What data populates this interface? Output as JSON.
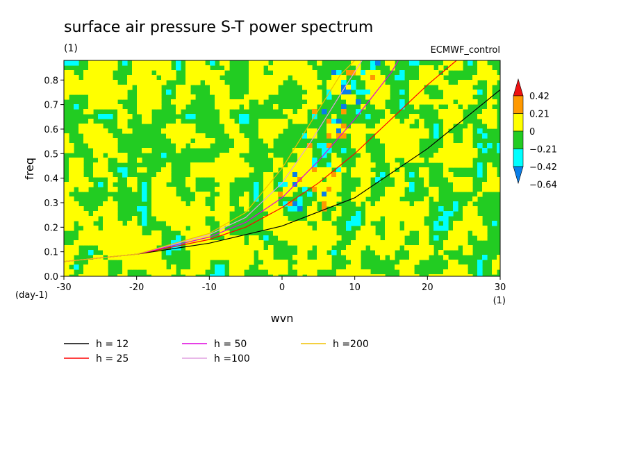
{
  "chart_data": {
    "type": "heatmap",
    "title": "surface air pressure S-T power spectrum",
    "title_unit": "(1)",
    "dataset_label": "ECMWF_control",
    "xlabel": "wvn",
    "x_unit": "(1)",
    "ylabel": "freq",
    "y_unit": "(day-1)",
    "xlim": [
      -30,
      30
    ],
    "ylim": [
      0,
      0.88
    ],
    "x_ticks": [
      -30,
      -20,
      -10,
      0,
      10,
      20,
      30
    ],
    "y_ticks": [
      0.0,
      0.1,
      0.2,
      0.3,
      0.4,
      0.5,
      0.6,
      0.7,
      0.8
    ],
    "grid": false,
    "colorbar": {
      "levels": [
        -0.64,
        -0.42,
        -0.21,
        0,
        0.21,
        0.42
      ],
      "level_labels": [
        "-0.64",
        "-0.42",
        "-0.21",
        "0",
        "0.21",
        "0.42"
      ],
      "colors": [
        "#0a7ee8",
        "#00ffff",
        "#22cc22",
        "#ffff00",
        "#ff9900",
        "#ee1111"
      ]
    },
    "dispersion_curves": [
      {
        "name": "h = 12",
        "color": "#000000",
        "x": [
          -30,
          -20,
          -10,
          0,
          10,
          20,
          30
        ],
        "y": [
          0.06,
          0.09,
          0.135,
          0.205,
          0.32,
          0.52,
          0.76
        ]
      },
      {
        "name": "h = 25",
        "color": "#ff0000",
        "x": [
          -30,
          -20,
          -10,
          -5,
          0,
          5,
          10,
          15,
          20,
          24
        ],
        "y": [
          0.06,
          0.09,
          0.15,
          0.2,
          0.28,
          0.38,
          0.5,
          0.64,
          0.78,
          0.88
        ]
      },
      {
        "name": "h = 50",
        "color": "#dd00dd",
        "x": [
          -30,
          -20,
          -10,
          -5,
          0,
          5,
          10,
          15,
          16
        ],
        "y": [
          0.06,
          0.09,
          0.16,
          0.22,
          0.32,
          0.47,
          0.64,
          0.83,
          0.88
        ]
      },
      {
        "name": "h =100",
        "color": "#e0a0e0",
        "x": [
          -30,
          -20,
          -10,
          -5,
          0,
          4,
          8,
          11
        ],
        "y": [
          0.06,
          0.09,
          0.17,
          0.24,
          0.38,
          0.55,
          0.74,
          0.88
        ]
      },
      {
        "name": "h =200",
        "color": "#f0c000",
        "x": [
          -30,
          -20,
          -10,
          -5,
          0,
          4,
          8,
          10
        ],
        "y": [
          0.06,
          0.09,
          0.175,
          0.26,
          0.44,
          0.63,
          0.82,
          0.88
        ]
      }
    ]
  }
}
